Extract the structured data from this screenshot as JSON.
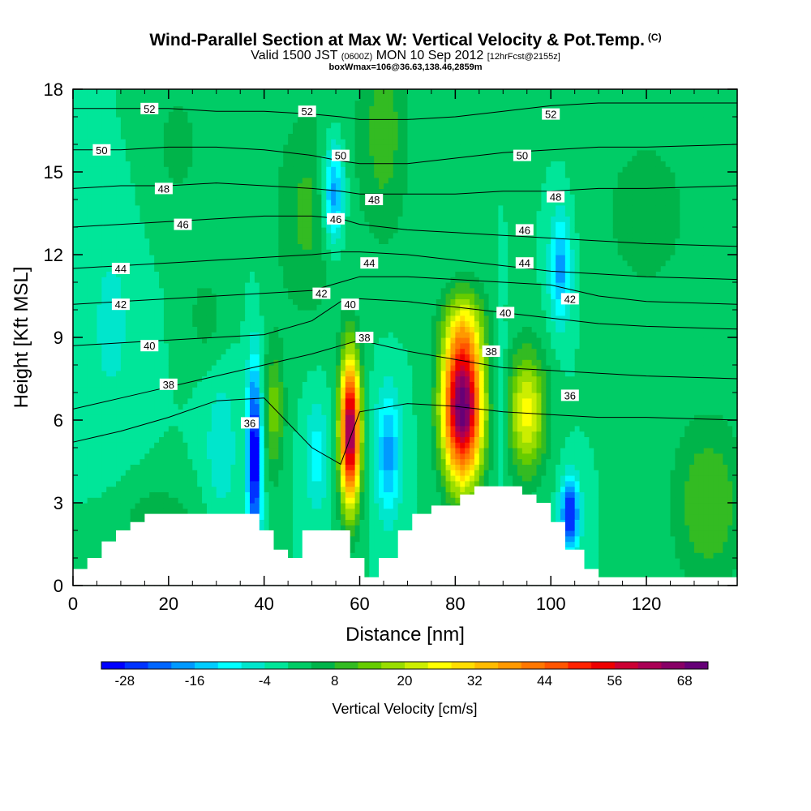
{
  "title": {
    "main": "Wind-Parallel Section at Max W: Vertical Velocity & Pot.Temp.",
    "copyright": "(C)",
    "valid_prefix": "Valid 1500 JST",
    "valid_utc": "(0600Z)",
    "valid_date": "MON 10 Sep 2012",
    "forecast": "[12hrFcst@2155z]",
    "box": "boxWmax=106@36.63,138.46,2859m"
  },
  "chart_data": {
    "type": "heatmap",
    "xlabel": "Distance [nm]",
    "ylabel": "Height [Kft MSL]",
    "xlim": [
      0,
      139
    ],
    "ylim": [
      0,
      18
    ],
    "x_ticks": [
      0,
      20,
      40,
      60,
      80,
      100,
      120
    ],
    "y_ticks": [
      0,
      3,
      6,
      9,
      12,
      15,
      18
    ],
    "x_tick_labels": [
      "0",
      "20",
      "40",
      "60",
      "80",
      "100",
      "120"
    ],
    "y_tick_labels": [
      "0",
      "3",
      "6",
      "9",
      "12",
      "15",
      "18"
    ],
    "colorbar": {
      "label": "Vertical Velocity [cm/s]",
      "tick_labels": [
        "-28",
        "-16",
        "-4",
        "8",
        "20",
        "32",
        "44",
        "56",
        "68"
      ],
      "min": -32,
      "max": 72,
      "step": 4,
      "colors": [
        "#0000ff",
        "#0033ff",
        "#0066ff",
        "#0099ff",
        "#00ccff",
        "#00ffff",
        "#00e6cc",
        "#00e699",
        "#00cc66",
        "#00b44a",
        "#33bb22",
        "#66cc00",
        "#99dd00",
        "#ccee00",
        "#ffff00",
        "#ffdd00",
        "#ffbb00",
        "#ff9900",
        "#ff7700",
        "#ff5500",
        "#ff2200",
        "#ee0000",
        "#cc0033",
        "#aa0055",
        "#880066",
        "#660077"
      ]
    },
    "background_w": 0,
    "w_features": [
      {
        "x": 58,
        "y": 5.6,
        "amp": 66,
        "sx": 1.5,
        "sy": 1.9
      },
      {
        "x": 81.5,
        "y": 6.5,
        "amp": 72,
        "sx": 2.9,
        "sy": 1.9
      },
      {
        "x": 95,
        "y": 6.3,
        "amp": 26,
        "sx": 2.8,
        "sy": 1.6
      },
      {
        "x": 42,
        "y": 6.3,
        "amp": 14,
        "sx": 1.6,
        "sy": 1.7
      },
      {
        "x": 38,
        "y": 4.7,
        "amp": -34,
        "sx": 1.1,
        "sy": 2.3
      },
      {
        "x": 104,
        "y": 2.6,
        "amp": -30,
        "sx": 1.4,
        "sy": 0.9
      },
      {
        "x": 66,
        "y": 4.8,
        "amp": -18,
        "sx": 1.9,
        "sy": 1.6
      },
      {
        "x": 89.5,
        "y": 6.8,
        "amp": -9,
        "sx": 1.0,
        "sy": 1.8
      },
      {
        "x": 54.5,
        "y": 14.2,
        "amp": -22,
        "sx": 1.6,
        "sy": 1.3
      },
      {
        "x": 102,
        "y": 11.5,
        "amp": -18,
        "sx": 1.6,
        "sy": 1.4
      },
      {
        "x": 51,
        "y": 4.8,
        "amp": -10,
        "sx": 1.8,
        "sy": 1.5
      },
      {
        "x": 133,
        "y": 3.0,
        "amp": 12,
        "sx": 5.5,
        "sy": 2.2
      },
      {
        "x": 49,
        "y": 13.5,
        "amp": 9,
        "sx": 5.0,
        "sy": 2.8
      },
      {
        "x": 82,
        "y": 9.4,
        "amp": 12,
        "sx": 3.5,
        "sy": 1.0
      },
      {
        "x": 65,
        "y": 16.5,
        "amp": 10,
        "sx": 4.0,
        "sy": 3.0
      },
      {
        "x": 18,
        "y": 2.3,
        "amp": 7,
        "sx": 6.0,
        "sy": 1.0
      },
      {
        "x": 28,
        "y": 9.8,
        "amp": 6,
        "sx": 3.0,
        "sy": 1.2
      },
      {
        "x": 120,
        "y": 13.5,
        "amp": 6,
        "sx": 8.0,
        "sy": 2.5
      },
      {
        "x": 31,
        "y": 5.0,
        "amp": -7,
        "sx": 2.5,
        "sy": 2.0
      },
      {
        "x": 8,
        "y": 9.5,
        "amp": -5,
        "sx": 4.0,
        "sy": 3.0
      },
      {
        "x": 22,
        "y": 16.0,
        "amp": 5,
        "sx": 5.0,
        "sy": 2.0
      }
    ],
    "isentropes": [
      {
        "value": 36,
        "y": [
          5.2,
          5.6,
          6.1,
          6.7,
          6.8,
          5.0,
          4.4,
          6.3,
          6.6,
          6.5,
          6.3,
          6.2,
          6.1,
          6.1,
          6.0
        ]
      },
      {
        "value": 38,
        "y": [
          6.4,
          6.8,
          7.2,
          7.6,
          8.0,
          8.4,
          8.7,
          8.9,
          8.5,
          8.2,
          7.9,
          7.8,
          7.7,
          7.6,
          7.5
        ]
      },
      {
        "value": 40,
        "y": [
          8.7,
          8.8,
          8.9,
          9.0,
          9.1,
          9.6,
          10.3,
          10.4,
          10.3,
          10.1,
          9.9,
          9.7,
          9.5,
          9.4,
          9.3
        ]
      },
      {
        "value": 42,
        "y": [
          10.2,
          10.3,
          10.4,
          10.5,
          10.6,
          10.7,
          11.0,
          11.2,
          11.2,
          11.1,
          11.0,
          10.9,
          10.5,
          10.3,
          10.2
        ]
      },
      {
        "value": 44,
        "y": [
          11.5,
          11.6,
          11.7,
          11.8,
          11.9,
          12.0,
          12.1,
          12.1,
          12.0,
          11.8,
          11.6,
          11.4,
          11.3,
          11.2,
          11.1
        ]
      },
      {
        "value": 46,
        "y": [
          13.0,
          13.1,
          13.2,
          13.3,
          13.4,
          13.4,
          13.3,
          13.1,
          12.9,
          12.8,
          12.7,
          12.6,
          12.5,
          12.4,
          12.3
        ]
      },
      {
        "value": 48,
        "y": [
          14.4,
          14.5,
          14.5,
          14.6,
          14.5,
          14.4,
          14.3,
          14.2,
          14.2,
          14.2,
          14.3,
          14.3,
          14.4,
          14.4,
          14.5
        ]
      },
      {
        "value": 50,
        "y": [
          15.8,
          15.8,
          15.9,
          15.9,
          15.8,
          15.6,
          15.4,
          15.3,
          15.3,
          15.5,
          15.7,
          15.8,
          15.9,
          15.9,
          16.0
        ]
      },
      {
        "value": 52,
        "y": [
          17.3,
          17.3,
          17.3,
          17.2,
          17.2,
          17.1,
          17.0,
          16.9,
          16.9,
          17.0,
          17.2,
          17.4,
          17.5,
          17.5,
          17.5
        ]
      }
    ],
    "isentrope_x": [
      0,
      10,
      20,
      30,
      40,
      50,
      56,
      60,
      70,
      80,
      90,
      100,
      110,
      120,
      139
    ],
    "contour_labels": [
      {
        "text": "52",
        "x": 16,
        "y": 17.3
      },
      {
        "text": "52",
        "x": 49,
        "y": 17.2
      },
      {
        "text": "52",
        "x": 100,
        "y": 17.1
      },
      {
        "text": "50",
        "x": 6,
        "y": 15.8
      },
      {
        "text": "50",
        "x": 56,
        "y": 15.6
      },
      {
        "text": "50",
        "x": 94,
        "y": 15.6
      },
      {
        "text": "48",
        "x": 19,
        "y": 14.4
      },
      {
        "text": "48",
        "x": 63,
        "y": 14.0
      },
      {
        "text": "48",
        "x": 101,
        "y": 14.1
      },
      {
        "text": "46",
        "x": 23,
        "y": 13.1
      },
      {
        "text": "46",
        "x": 55,
        "y": 13.3
      },
      {
        "text": "46",
        "x": 94.5,
        "y": 12.9
      },
      {
        "text": "44",
        "x": 10,
        "y": 11.5
      },
      {
        "text": "44",
        "x": 62,
        "y": 11.7
      },
      {
        "text": "44",
        "x": 94.5,
        "y": 11.7
      },
      {
        "text": "42",
        "x": 10,
        "y": 10.2
      },
      {
        "text": "42",
        "x": 52,
        "y": 10.6
      },
      {
        "text": "42",
        "x": 104,
        "y": 10.4
      },
      {
        "text": "40",
        "x": 16,
        "y": 8.7
      },
      {
        "text": "40",
        "x": 58,
        "y": 10.2
      },
      {
        "text": "40",
        "x": 90.5,
        "y": 9.9
      },
      {
        "text": "38",
        "x": 20,
        "y": 7.3
      },
      {
        "text": "38",
        "x": 61,
        "y": 9.0
      },
      {
        "text": "38",
        "x": 87.5,
        "y": 8.5
      },
      {
        "text": "36",
        "x": 37,
        "y": 5.9
      },
      {
        "text": "36",
        "x": 104,
        "y": 6.9
      }
    ],
    "terrain": [
      [
        0,
        0.6
      ],
      [
        3,
        0.6
      ],
      [
        3,
        1.0
      ],
      [
        6,
        1.0
      ],
      [
        6,
        1.6
      ],
      [
        9,
        1.6
      ],
      [
        9,
        2.0
      ],
      [
        12,
        2.0
      ],
      [
        12,
        2.3
      ],
      [
        15,
        2.3
      ],
      [
        15,
        2.6
      ],
      [
        39,
        2.6
      ],
      [
        39,
        2.0
      ],
      [
        42,
        2.0
      ],
      [
        42,
        1.3
      ],
      [
        45,
        1.3
      ],
      [
        45,
        1.0
      ],
      [
        48,
        1.0
      ],
      [
        48,
        2.0
      ],
      [
        58,
        2.0
      ],
      [
        58,
        1.0
      ],
      [
        61,
        1.0
      ],
      [
        61,
        0.3
      ],
      [
        64,
        0.3
      ],
      [
        64,
        1.0
      ],
      [
        68,
        1.0
      ],
      [
        68,
        2.0
      ],
      [
        71,
        2.0
      ],
      [
        71,
        2.6
      ],
      [
        75,
        2.6
      ],
      [
        75,
        2.9
      ],
      [
        81,
        2.9
      ],
      [
        81,
        3.3
      ],
      [
        84,
        3.3
      ],
      [
        84,
        3.6
      ],
      [
        94,
        3.6
      ],
      [
        94,
        3.3
      ],
      [
        97,
        3.3
      ],
      [
        97,
        3.0
      ],
      [
        100,
        3.0
      ],
      [
        100,
        2.3
      ],
      [
        103,
        2.3
      ],
      [
        103,
        1.3
      ],
      [
        107,
        1.3
      ],
      [
        107,
        0.6
      ],
      [
        110,
        0.6
      ],
      [
        110,
        0.3
      ],
      [
        139,
        0.3
      ]
    ]
  }
}
